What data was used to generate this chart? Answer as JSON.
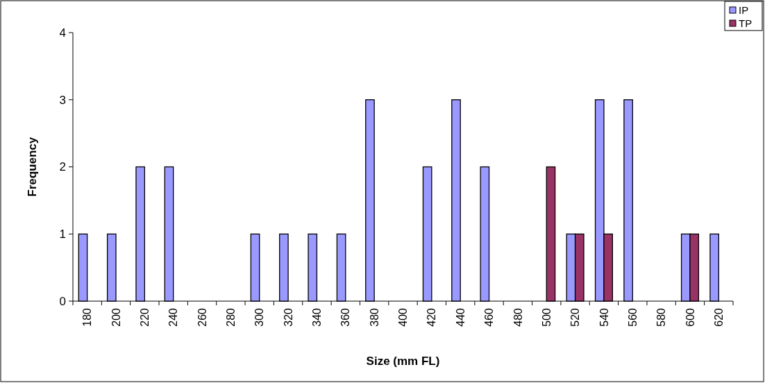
{
  "chart_data": {
    "type": "bar",
    "xlabel": "Size (mm FL)",
    "ylabel": "Frequency",
    "categories": [
      "180",
      "200",
      "220",
      "240",
      "260",
      "280",
      "300",
      "320",
      "340",
      "360",
      "380",
      "400",
      "420",
      "440",
      "460",
      "480",
      "500",
      "520",
      "540",
      "560",
      "580",
      "600",
      "620"
    ],
    "series": [
      {
        "name": "IP",
        "color": "#9999ff",
        "values": [
          1,
          1,
          2,
          2,
          0,
          0,
          1,
          1,
          1,
          1,
          3,
          0,
          2,
          3,
          2,
          0,
          0,
          1,
          3,
          3,
          0,
          1,
          1
        ]
      },
      {
        "name": "TP",
        "color": "#993366",
        "values": [
          0,
          0,
          0,
          0,
          0,
          0,
          0,
          0,
          0,
          0,
          0,
          0,
          0,
          0,
          0,
          0,
          2,
          1,
          1,
          0,
          0,
          1,
          0
        ]
      }
    ],
    "ylim": [
      0,
      4
    ],
    "yticks": [
      0,
      1,
      2,
      3,
      4
    ],
    "grid": false,
    "legend": "top right"
  }
}
